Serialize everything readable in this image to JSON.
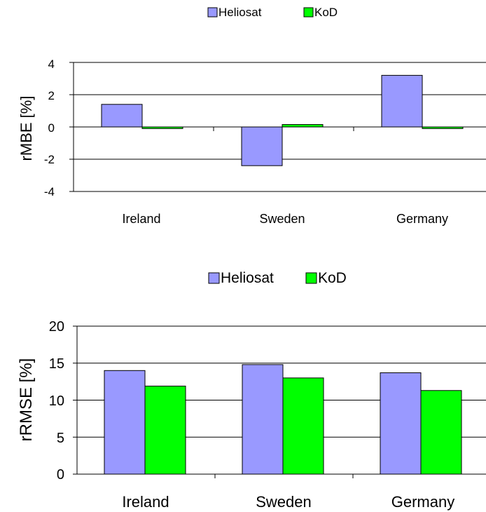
{
  "chart_data": [
    {
      "type": "bar",
      "categories": [
        "Ireland",
        "Sweden",
        "Germany"
      ],
      "series": [
        {
          "name": "Heliosat",
          "values": [
            1.4,
            -2.4,
            3.2
          ],
          "color": "#9999ff"
        },
        {
          "name": "KoD",
          "values": [
            -0.1,
            0.15,
            -0.1
          ],
          "color": "#00ff00"
        }
      ],
      "title": "",
      "xlabel": "",
      "ylabel": "rMBE [%]",
      "ylim": [
        -4,
        4
      ],
      "yticks": [
        "4",
        "2",
        "0",
        "-2",
        "-4"
      ],
      "grid": true,
      "legend": "top"
    },
    {
      "type": "bar",
      "categories": [
        "Ireland",
        "Sweden",
        "Germany"
      ],
      "series": [
        {
          "name": "Heliosat",
          "values": [
            14.0,
            14.8,
            13.7
          ],
          "color": "#9999ff"
        },
        {
          "name": "KoD",
          "values": [
            11.9,
            13.0,
            11.3
          ],
          "color": "#00ff00"
        }
      ],
      "title": "",
      "xlabel": "",
      "ylabel": "rRMSE [%]",
      "ylim": [
        0,
        20
      ],
      "yticks": [
        "20",
        "15",
        "10",
        "5",
        "0"
      ],
      "grid": true,
      "legend": "top"
    }
  ]
}
